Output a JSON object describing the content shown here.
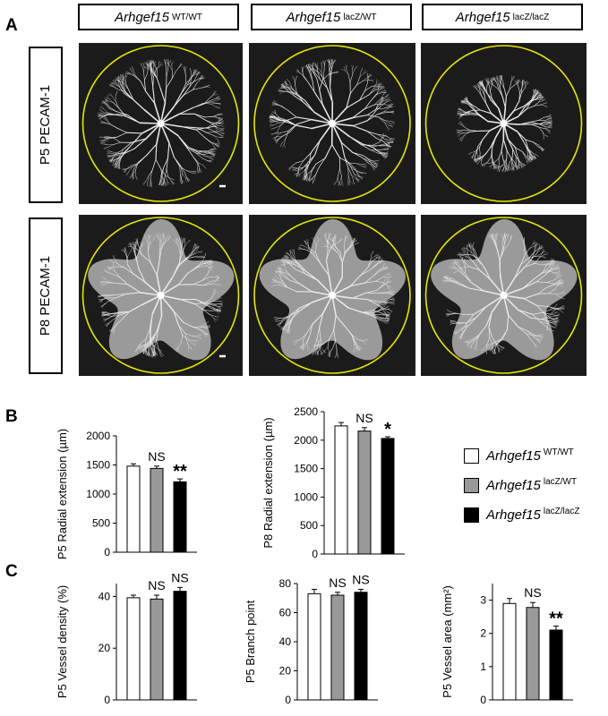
{
  "panels": {
    "a": "A",
    "b": "B",
    "c": "C"
  },
  "genotypes": [
    {
      "gene": "Arhgef15",
      "allele": "WT/WT",
      "color": "#ffffff"
    },
    {
      "gene": "Arhgef15",
      "allele": "lacZ/WT",
      "color": "#999999"
    },
    {
      "gene": "Arhgef15",
      "allele": "lacZ/lacZ",
      "color": "#000000"
    }
  ],
  "row_labels": [
    "P5 PECAM-1",
    "P8 PECAM-1"
  ],
  "image_colors": {
    "background": "#1b1b1b",
    "vessels": "#e8e8e8",
    "outline": "#e6e600"
  },
  "chart_data": [
    {
      "type": "bar",
      "ylabel": "P5 Radial extension (µm)",
      "ylim": [
        0,
        2000
      ],
      "yticks": [
        0,
        500,
        1000,
        1500,
        2000
      ],
      "categories": [
        "Arhgef15 WT/WT",
        "Arhgef15 lacZ/WT",
        "Arhgef15 lacZ/lacZ"
      ],
      "values": [
        1480,
        1440,
        1210
      ],
      "errors": [
        40,
        40,
        50
      ],
      "annotations": [
        "",
        "NS",
        "**"
      ]
    },
    {
      "type": "bar",
      "ylabel": "P8 Radial extension (µm)",
      "ylim": [
        0,
        2500
      ],
      "yticks": [
        0,
        500,
        1000,
        1500,
        2000,
        2500
      ],
      "categories": [
        "Arhgef15 WT/WT",
        "Arhgef15 lacZ/WT",
        "Arhgef15 lacZ/lacZ"
      ],
      "values": [
        2250,
        2160,
        2030
      ],
      "errors": [
        60,
        60,
        30
      ],
      "annotations": [
        "",
        "NS",
        "*"
      ]
    },
    {
      "type": "bar",
      "ylabel": "P5 Vessel density (%)",
      "ylim": [
        0,
        45
      ],
      "yticks": [
        0,
        20,
        40
      ],
      "categories": [
        "Arhgef15 WT/WT",
        "Arhgef15 lacZ/WT",
        "Arhgef15 lacZ/lacZ"
      ],
      "values": [
        39.5,
        39,
        42
      ],
      "errors": [
        1,
        1.5,
        1.5
      ],
      "annotations": [
        "",
        "NS",
        "NS"
      ]
    },
    {
      "type": "bar",
      "ylabel": "P5 Branch point",
      "ylim": [
        0,
        80
      ],
      "yticks": [
        0,
        20,
        40,
        60,
        80
      ],
      "categories": [
        "Arhgef15 WT/WT",
        "Arhgef15 lacZ/WT",
        "Arhgef15 lacZ/lacZ"
      ],
      "values": [
        73,
        72,
        74
      ],
      "errors": [
        3,
        2,
        2
      ],
      "annotations": [
        "",
        "NS",
        "NS"
      ]
    },
    {
      "type": "bar",
      "ylabel": "P5 Vessel area (mm²)",
      "ylim": [
        0,
        3.5
      ],
      "yticks": [
        0,
        1,
        2,
        3
      ],
      "categories": [
        "Arhgef15 WT/WT",
        "Arhgef15 lacZ/WT",
        "Arhgef15 lacZ/lacZ"
      ],
      "values": [
        2.9,
        2.78,
        2.1
      ],
      "errors": [
        0.15,
        0.15,
        0.12
      ],
      "annotations": [
        "",
        "NS",
        "**"
      ]
    }
  ]
}
